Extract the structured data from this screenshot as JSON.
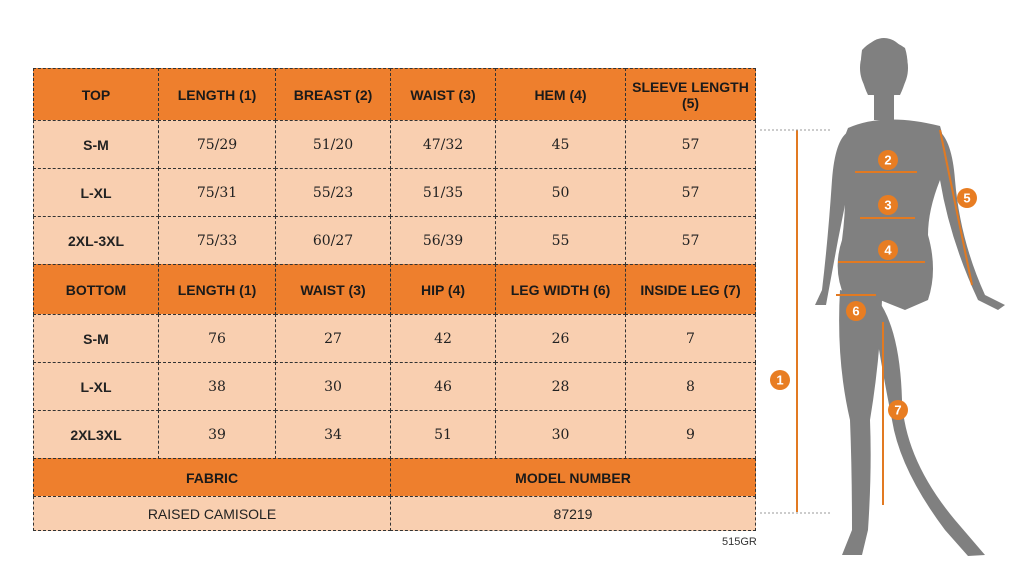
{
  "top": {
    "header": [
      "TOP",
      "LENGTH (1)",
      "BREAST (2)",
      "WAIST (3)",
      "HEM (4)",
      "SLEEVE LENGTH (5)"
    ],
    "rows": [
      [
        "S-M",
        "75/29",
        "51/20",
        "47/32",
        "45",
        "57"
      ],
      [
        "L-XL",
        "75/31",
        "55/23",
        "51/35",
        "50",
        "57"
      ],
      [
        "2XL-3XL",
        "75/33",
        "60/27",
        "56/39",
        "55",
        "57"
      ]
    ]
  },
  "bottom": {
    "header": [
      "BOTTOM",
      "LENGTH (1)",
      "WAIST (3)",
      "HIP (4)",
      "LEG WIDTH (6)",
      "INSIDE LEG (7)"
    ],
    "rows": [
      [
        "S-M",
        "76",
        "27",
        "42",
        "26",
        "7"
      ],
      [
        "L-XL",
        "38",
        "30",
        "46",
        "28",
        "8"
      ],
      [
        "2XL3XL",
        "39",
        "34",
        "51",
        "30",
        "9"
      ]
    ]
  },
  "fabric": {
    "header": "FABRIC",
    "value": "RAISED CAMISOLE"
  },
  "model": {
    "header": "MODEL NUMBER",
    "value": "87219"
  },
  "code": "515GR",
  "figure": {
    "markers": [
      "1",
      "2",
      "3",
      "4",
      "5",
      "6",
      "7"
    ]
  }
}
